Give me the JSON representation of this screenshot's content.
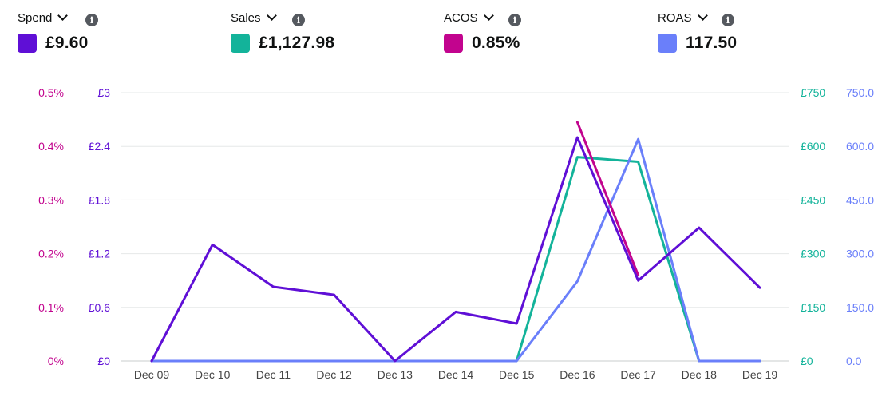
{
  "metrics": [
    {
      "label": "Spend",
      "value": "£9.60",
      "color": "#5f0fd6"
    },
    {
      "label": "Sales",
      "value": "£1,127.98",
      "color": "#13b39a"
    },
    {
      "label": "ACOS",
      "value": "0.85%",
      "color": "#c2048e"
    },
    {
      "label": "ROAS",
      "value": "117.50",
      "color": "#6a7ffa"
    }
  ],
  "icons": {
    "dropdown": "chevron-down-icon",
    "info": "info-icon"
  },
  "chart_data": {
    "type": "line",
    "grid": true,
    "x": [
      "Dec 09",
      "Dec 10",
      "Dec 11",
      "Dec 12",
      "Dec 13",
      "Dec 14",
      "Dec 15",
      "Dec 16",
      "Dec 17",
      "Dec 18",
      "Dec 19"
    ],
    "axes": {
      "acos": {
        "side": "left-outer",
        "ylim": [
          0,
          0.5
        ],
        "ticks": [
          "0%",
          "0.1%",
          "0.2%",
          "0.3%",
          "0.4%",
          "0.5%"
        ],
        "color": "#c2048e"
      },
      "spend": {
        "side": "left-inner",
        "ylim": [
          0,
          3
        ],
        "ticks": [
          "£0",
          "£0.6",
          "£1.2",
          "£1.8",
          "£2.4",
          "£3"
        ],
        "color": "#5f0fd6"
      },
      "sales": {
        "side": "right-inner",
        "ylim": [
          0,
          750
        ],
        "ticks": [
          "£0",
          "£150",
          "£300",
          "£450",
          "£600",
          "£750"
        ],
        "color": "#13b39a"
      },
      "roas": {
        "side": "right-outer",
        "ylim": [
          0,
          750
        ],
        "ticks": [
          "0.0",
          "150.0",
          "300.0",
          "450.0",
          "600.0",
          "750.0"
        ],
        "color": "#6a7ffa"
      }
    },
    "series": [
      {
        "name": "Sales",
        "axis": "sales",
        "color": "#13b39a",
        "values": [
          0,
          0,
          0,
          0,
          0,
          0,
          0,
          570,
          557,
          0,
          0
        ]
      },
      {
        "name": "ROAS",
        "axis": "roas",
        "color": "#6a7ffa",
        "values": [
          0,
          0,
          0,
          0,
          0,
          0,
          0,
          223,
          620,
          0,
          0
        ]
      },
      {
        "name": "ACOS",
        "axis": "acos",
        "color": "#c2048e",
        "values": [
          null,
          null,
          null,
          null,
          null,
          null,
          null,
          0.445,
          0.16,
          null,
          null
        ]
      },
      {
        "name": "Spend",
        "axis": "spend",
        "color": "#5f0fd6",
        "values": [
          0,
          1.3,
          0.83,
          0.74,
          0,
          0.55,
          0.42,
          2.5,
          0.9,
          1.49,
          0.82
        ]
      }
    ]
  }
}
